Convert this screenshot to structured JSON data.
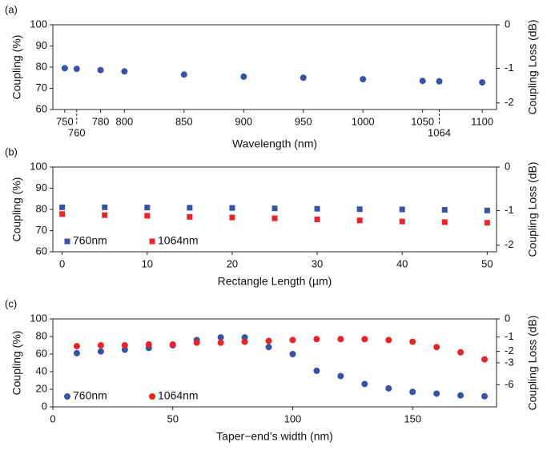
{
  "chart_data": [
    {
      "type": "scatter",
      "panel_label": "(a)",
      "xlabel": "Wavelength (nm)",
      "ylabel": "Coupling (%)",
      "y2label": "Coupling Loss (dB)",
      "x": [
        750,
        760,
        780,
        800,
        850,
        900,
        950,
        1000,
        1050,
        1064,
        1100
      ],
      "series": [
        {
          "color": "#3953a4",
          "marker": "circle",
          "values": [
            79.5,
            79.2,
            78.6,
            78,
            76.5,
            75.5,
            75,
            74.3,
            73.5,
            73.3,
            72.8
          ]
        }
      ],
      "xlim": [
        740,
        1112
      ],
      "xticks": [
        750,
        780,
        800,
        850,
        900,
        950,
        1000,
        1050,
        1100
      ],
      "xticks_below": [
        760,
        1064
      ],
      "ylim": [
        60,
        100
      ],
      "yticks": [
        60,
        70,
        80,
        90,
        100
      ],
      "y2ticks": [
        0,
        -1,
        -2
      ],
      "y2scale": "log"
    },
    {
      "type": "scatter",
      "panel_label": "(b)",
      "xlabel": "Rectangle Length (µm)",
      "ylabel": "Coupling (%)",
      "y2label": "Coupling Loss (dB)",
      "x": [
        0,
        5,
        10,
        15,
        20,
        25,
        30,
        35,
        40,
        45,
        50
      ],
      "series": [
        {
          "name": "760nm",
          "color": "#3953a4",
          "marker": "square",
          "values": [
            81,
            81,
            80.9,
            80.8,
            80.7,
            80.5,
            80.3,
            80.1,
            80,
            79.8,
            79.5
          ]
        },
        {
          "name": "1064nm",
          "color": "#e8242b",
          "marker": "square",
          "values": [
            77.8,
            77.3,
            77,
            76.5,
            76.2,
            75.8,
            75.3,
            74.8,
            74.3,
            74,
            73.7
          ]
        }
      ],
      "xlim": [
        -1.1,
        51.1
      ],
      "xticks": [
        0,
        10,
        20,
        30,
        40,
        50
      ],
      "ylim": [
        60,
        100
      ],
      "yticks": [
        60,
        70,
        80,
        90,
        100
      ],
      "y2ticks": [
        0,
        -1,
        -2
      ],
      "y2scale": "log",
      "legend": "lower left"
    },
    {
      "type": "scatter",
      "panel_label": "(c)",
      "xlabel": "Taper−end’s width (nm)",
      "ylabel": "Coupling (%)",
      "y2label": "Coupling Loss (dB)",
      "x": [
        10,
        20,
        30,
        40,
        50,
        60,
        70,
        80,
        90,
        100,
        110,
        120,
        130,
        140,
        150,
        160,
        170,
        180
      ],
      "series": [
        {
          "name": "760nm",
          "color": "#3953a4",
          "marker": "circle",
          "values": [
            61,
            63,
            65,
            67,
            70,
            76,
            79,
            79,
            68,
            60,
            41,
            35,
            26,
            21,
            17,
            15,
            13,
            12
          ]
        },
        {
          "name": "1064nm",
          "color": "#e8242b",
          "marker": "circle",
          "values": [
            69,
            70,
            70,
            71,
            71,
            73,
            73,
            74,
            75,
            76,
            77,
            77,
            77,
            76,
            74,
            68,
            62,
            54
          ]
        }
      ],
      "xlim": [
        0,
        185
      ],
      "xticks": [
        0,
        50,
        100,
        150
      ],
      "ylim": [
        0,
        100
      ],
      "yticks": [
        0,
        20,
        40,
        60,
        80,
        100
      ],
      "y2ticks": [
        0,
        -1,
        -2,
        -3,
        -6
      ],
      "y2scale": "log",
      "legend": "lower left"
    }
  ]
}
